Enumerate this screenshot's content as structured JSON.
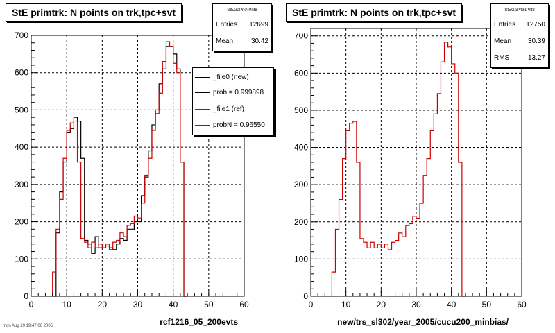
{
  "panels": [
    {
      "title": "StE primtrk: N points on trk,tpc+svt",
      "stats": {
        "name": "StEGaPrkNPnt8",
        "rows": [
          {
            "label": "Entries",
            "value": "12699"
          },
          {
            "label": "Mean",
            "value": "30.42"
          }
        ]
      },
      "legend": [
        {
          "label": "_file0 (new)",
          "color": "#000000"
        },
        {
          "label": "prob = 0.999898",
          "color": "#000000"
        },
        {
          "label": "_file1 (ref)",
          "color": "#cc0000"
        },
        {
          "label": "probN = 0.96550",
          "color": "#cc0000"
        }
      ],
      "xlabel": "rcf1216_05_200evts"
    },
    {
      "title": "StE primtrk: N points on trk,tpc+svt",
      "stats": {
        "name": "StEGaPrkNPnt8",
        "rows": [
          {
            "label": "Entries",
            "value": "12750"
          },
          {
            "label": "Mean",
            "value": "30.39"
          },
          {
            "label": "RMS",
            "value": "13.27"
          }
        ]
      },
      "legend": [],
      "xlabel": "new/trs_sl302/year_2005/cucu200_minbias/"
    }
  ],
  "footer": "mon Aug 29 19:47:06 2005",
  "chart_data": [
    {
      "type": "step",
      "xlim": [
        0,
        60
      ],
      "ylim": [
        0,
        700
      ],
      "x_ticks": [
        0,
        10,
        20,
        30,
        40,
        50,
        60
      ],
      "y_ticks": [
        0,
        100,
        200,
        300,
        400,
        500,
        600,
        700
      ],
      "grid": true,
      "legend_position": "top-right",
      "bin_edges_start": 6,
      "bin_width": 1,
      "series": [
        {
          "name": "_file0 (new)",
          "color": "#000000",
          "values": [
            0,
            170,
            280,
            360,
            440,
            450,
            480,
            470,
            370,
            150,
            140,
            115,
            160,
            130,
            130,
            135,
            130,
            125,
            140,
            155,
            150,
            180,
            180,
            200,
            200,
            270,
            320,
            390,
            460,
            500,
            570,
            610,
            670,
            670,
            650,
            610,
            360,
            0
          ]
        },
        {
          "name": "_file1 (ref)",
          "color": "#cc0000",
          "values": [
            65,
            180,
            260,
            370,
            445,
            465,
            470,
            360,
            155,
            145,
            130,
            145,
            130,
            140,
            130,
            140,
            125,
            145,
            150,
            170,
            160,
            190,
            195,
            215,
            210,
            250,
            325,
            370,
            445,
            490,
            545,
            630,
            683,
            670,
            625,
            600,
            360,
            0
          ]
        }
      ]
    },
    {
      "type": "step",
      "xlim": [
        0,
        60
      ],
      "ylim": [
        0,
        720
      ],
      "x_ticks": [
        0,
        10,
        20,
        30,
        40,
        50,
        60
      ],
      "y_ticks": [
        0,
        100,
        200,
        300,
        400,
        500,
        600,
        700
      ],
      "grid": true,
      "bin_edges_start": 6,
      "bin_width": 1,
      "series": [
        {
          "name": "",
          "color": "#cc0000",
          "values": [
            65,
            180,
            260,
            370,
            445,
            465,
            470,
            360,
            155,
            145,
            130,
            145,
            130,
            140,
            130,
            140,
            125,
            145,
            150,
            170,
            160,
            190,
            195,
            215,
            210,
            250,
            325,
            370,
            445,
            490,
            545,
            630,
            683,
            670,
            625,
            600,
            360,
            0
          ]
        }
      ]
    }
  ]
}
